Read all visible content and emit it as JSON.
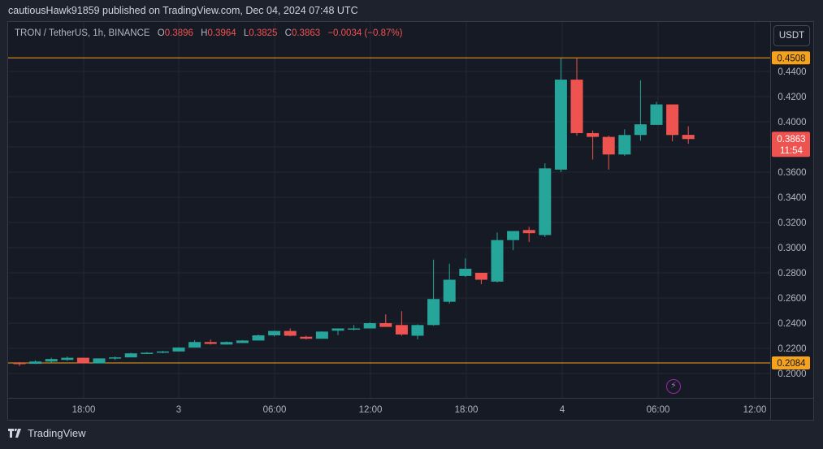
{
  "header": {
    "published_text": "cautiousHawk91859 published on TradingView.com, Dec 04, 2024 07:48 UTC"
  },
  "legend": {
    "symbol": "TRON / TetherUS, 1h, BINANCE",
    "open_label": "O",
    "open": "0.3896",
    "high_label": "H",
    "high": "0.3964",
    "low_label": "L",
    "low": "0.3825",
    "close_label": "C",
    "close": "0.3863",
    "change": "−0.0034 (−0.87%)"
  },
  "currency_button": "USDT",
  "price_axis": {
    "ticks": [
      "0.4400",
      "0.4200",
      "0.4000",
      "0.3600",
      "0.3400",
      "0.3200",
      "0.3000",
      "0.2800",
      "0.2600",
      "0.2400",
      "0.2200",
      "0.2000"
    ],
    "high_line_label": "0.4508",
    "low_line_label": "0.2084",
    "last_price_label": "0.3863",
    "countdown": "11:54"
  },
  "time_axis": {
    "ticks": [
      "18:00",
      "3",
      "06:00",
      "12:00",
      "18:00",
      "4",
      "06:00",
      "12:00"
    ]
  },
  "footer": {
    "brand": "TradingView"
  },
  "colors": {
    "up": "#26a69a",
    "down": "#ef5350",
    "hline": "#f7a21b",
    "background": "#161a25",
    "bolt": "#9c27b0"
  },
  "chart_data": {
    "type": "candlestick",
    "title": "TRON / TetherUS, 1h, BINANCE",
    "xlabel": "",
    "ylabel": "USDT",
    "ylim": [
      0.19,
      0.455
    ],
    "grid": true,
    "horizontal_lines": [
      0.4508,
      0.2084
    ],
    "x_ticks": [
      "18:00",
      "3",
      "06:00",
      "12:00",
      "18:00",
      "4",
      "06:00",
      "12:00"
    ],
    "candles": [
      {
        "o": 0.2084,
        "h": 0.209,
        "l": 0.206,
        "c": 0.2076
      },
      {
        "o": 0.2077,
        "h": 0.2105,
        "l": 0.2075,
        "c": 0.2095
      },
      {
        "o": 0.2095,
        "h": 0.2125,
        "l": 0.2085,
        "c": 0.2115
      },
      {
        "o": 0.2108,
        "h": 0.2135,
        "l": 0.21,
        "c": 0.2125
      },
      {
        "o": 0.2125,
        "h": 0.2125,
        "l": 0.208,
        "c": 0.208
      },
      {
        "o": 0.208,
        "h": 0.212,
        "l": 0.208,
        "c": 0.212
      },
      {
        "o": 0.212,
        "h": 0.2135,
        "l": 0.2108,
        "c": 0.2128
      },
      {
        "o": 0.2128,
        "h": 0.2165,
        "l": 0.2128,
        "c": 0.216
      },
      {
        "o": 0.216,
        "h": 0.217,
        "l": 0.2155,
        "c": 0.2165
      },
      {
        "o": 0.2165,
        "h": 0.218,
        "l": 0.216,
        "c": 0.2175
      },
      {
        "o": 0.2175,
        "h": 0.2208,
        "l": 0.2175,
        "c": 0.2206
      },
      {
        "o": 0.2206,
        "h": 0.2265,
        "l": 0.2206,
        "c": 0.225
      },
      {
        "o": 0.225,
        "h": 0.227,
        "l": 0.223,
        "c": 0.2235
      },
      {
        "o": 0.223,
        "h": 0.2255,
        "l": 0.223,
        "c": 0.225
      },
      {
        "o": 0.2242,
        "h": 0.2265,
        "l": 0.2242,
        "c": 0.2262
      },
      {
        "o": 0.2262,
        "h": 0.231,
        "l": 0.2262,
        "c": 0.2303
      },
      {
        "o": 0.2303,
        "h": 0.234,
        "l": 0.2295,
        "c": 0.2338
      },
      {
        "o": 0.2338,
        "h": 0.2358,
        "l": 0.2295,
        "c": 0.23
      },
      {
        "o": 0.2292,
        "h": 0.23,
        "l": 0.227,
        "c": 0.2276
      },
      {
        "o": 0.2276,
        "h": 0.2335,
        "l": 0.2276,
        "c": 0.2333
      },
      {
        "o": 0.234,
        "h": 0.235,
        "l": 0.2305,
        "c": 0.2358
      },
      {
        "o": 0.235,
        "h": 0.2385,
        "l": 0.2342,
        "c": 0.2358
      },
      {
        "o": 0.2358,
        "h": 0.2405,
        "l": 0.2358,
        "c": 0.24
      },
      {
        "o": 0.24,
        "h": 0.247,
        "l": 0.238,
        "c": 0.237
      },
      {
        "o": 0.2385,
        "h": 0.2495,
        "l": 0.23,
        "c": 0.231
      },
      {
        "o": 0.23,
        "h": 0.239,
        "l": 0.2272,
        "c": 0.2385
      },
      {
        "o": 0.2385,
        "h": 0.2905,
        "l": 0.238,
        "c": 0.2592
      },
      {
        "o": 0.257,
        "h": 0.2872,
        "l": 0.2555,
        "c": 0.2745
      },
      {
        "o": 0.2775,
        "h": 0.2915,
        "l": 0.2768,
        "c": 0.2832
      },
      {
        "o": 0.28,
        "h": 0.28,
        "l": 0.271,
        "c": 0.2745
      },
      {
        "o": 0.273,
        "h": 0.312,
        "l": 0.2723,
        "c": 0.306
      },
      {
        "o": 0.306,
        "h": 0.306,
        "l": 0.298,
        "c": 0.3132
      },
      {
        "o": 0.314,
        "h": 0.3165,
        "l": 0.3045,
        "c": 0.3115
      },
      {
        "o": 0.31,
        "h": 0.367,
        "l": 0.3085,
        "c": 0.363
      },
      {
        "o": 0.362,
        "h": 0.4505,
        "l": 0.36,
        "c": 0.4335
      },
      {
        "o": 0.4335,
        "h": 0.4508,
        "l": 0.389,
        "c": 0.391
      },
      {
        "o": 0.391,
        "h": 0.393,
        "l": 0.37,
        "c": 0.388
      },
      {
        "o": 0.388,
        "h": 0.389,
        "l": 0.362,
        "c": 0.374
      },
      {
        "o": 0.374,
        "h": 0.394,
        "l": 0.373,
        "c": 0.3895
      },
      {
        "o": 0.3895,
        "h": 0.433,
        "l": 0.385,
        "c": 0.398
      },
      {
        "o": 0.3975,
        "h": 0.416,
        "l": 0.3975,
        "c": 0.4138
      },
      {
        "o": 0.4138,
        "h": 0.4138,
        "l": 0.3845,
        "c": 0.3895
      },
      {
        "o": 0.3896,
        "h": 0.3964,
        "l": 0.3825,
        "c": 0.3863
      }
    ]
  }
}
